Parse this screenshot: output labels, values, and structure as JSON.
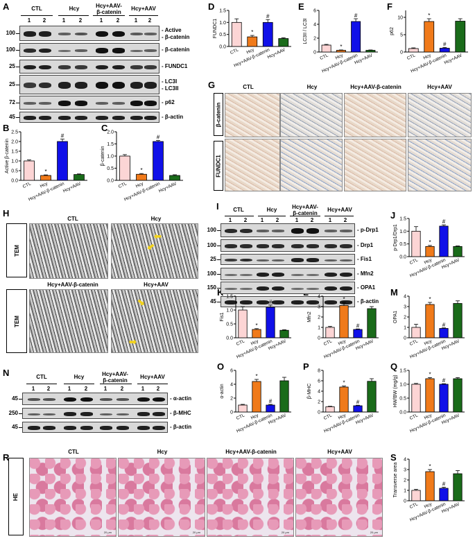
{
  "panels": {
    "A": "A",
    "B": "B",
    "C": "C",
    "D": "D",
    "E": "E",
    "F": "F",
    "G": "G",
    "H": "H",
    "I": "I",
    "J": "J",
    "K": "K",
    "L": "L",
    "M": "M",
    "N": "N",
    "O": "O",
    "P": "P",
    "Q": "Q",
    "R": "R",
    "S": "S"
  },
  "groups": [
    "CTL",
    "Hcy",
    "Hcy+AAV-β-catenin",
    "Hcy+AAV"
  ],
  "groups_wb_line1": [
    "CTL",
    "Hcy",
    "Hcy+AAV-",
    "Hcy+AAV"
  ],
  "groups_wb_line2": [
    "",
    "",
    "β-catenin",
    ""
  ],
  "lanes": [
    "1",
    "2"
  ],
  "blotA": {
    "rows": [
      {
        "mw": "100",
        "label1": "Active",
        "label2": "β-catenin"
      },
      {
        "mw": "100",
        "label1": "β-catenin",
        "label2": ""
      },
      {
        "mw": "25",
        "label1": "FUNDC1",
        "label2": ""
      },
      {
        "mw": "25",
        "label1": "LC3I",
        "label2": "LC3II"
      },
      {
        "mw": "72",
        "label1": "p62",
        "label2": ""
      },
      {
        "mw": "45",
        "label1": "β-actin",
        "label2": ""
      }
    ]
  },
  "blotI": {
    "rows": [
      {
        "mw": "100",
        "label": "p-Drp1"
      },
      {
        "mw": "100",
        "label": "Drp1"
      },
      {
        "mw": "25",
        "label": "Fis1"
      },
      {
        "mw": "100",
        "label": "Mfn2"
      },
      {
        "mw": "150",
        "label": "OPA1"
      },
      {
        "mw": "45",
        "label": "β-actin"
      }
    ]
  },
  "blotN": {
    "rows": [
      {
        "mw": "45",
        "label": "α-actin"
      },
      {
        "mw": "250",
        "label": "β-MHC"
      },
      {
        "mw": "45",
        "label": "β-actin"
      }
    ]
  },
  "ihc": {
    "titles": [
      "CTL",
      "Hcy",
      "Hcy+AAV-β-catenin",
      "Hcy+AAV"
    ],
    "rows": [
      "β-catenin",
      "FUNDC1"
    ]
  },
  "tem": {
    "row_label": "TEM",
    "titles": [
      "CTL",
      "Hcy",
      "Hcy+AAV-β-catenin",
      "Hcy+AAV"
    ]
  },
  "he": {
    "row_label": "HE",
    "titles": [
      "CTL",
      "Hcy",
      "Hcy+AAV-β-catenin",
      "Hcy+AAV"
    ],
    "scale_bar": "20 μm"
  },
  "colors": {
    "CTL": "#fcd5d5",
    "Hcy": "#f07a1a",
    "Hcy+AAV-β-catenin": "#1010e8",
    "Hcy+AAV": "#1a6b1a"
  },
  "chart_data": [
    {
      "panel": "B",
      "type": "bar",
      "categories": [
        "CTL",
        "Hcy",
        "Hcy+AAV-β-catenin",
        "Hcy+AAV"
      ],
      "values": [
        1.0,
        0.25,
        2.0,
        0.3
      ],
      "errors": [
        0.05,
        0.03,
        0.12,
        0.03
      ],
      "marks": [
        "",
        "*",
        "#",
        ""
      ],
      "ylabel": "Active β-catenin",
      "ylim": [
        0,
        2.5
      ],
      "yticks": [
        0.0,
        0.5,
        1.0,
        1.5,
        2.0,
        2.5
      ]
    },
    {
      "panel": "C",
      "type": "bar",
      "categories": [
        "CTL",
        "Hcy",
        "Hcy+AAV-β-catenin",
        "Hcy+AAV"
      ],
      "values": [
        1.0,
        0.25,
        1.6,
        0.2
      ],
      "errors": [
        0.06,
        0.03,
        0.04,
        0.03
      ],
      "marks": [
        "",
        "*",
        "#",
        ""
      ],
      "ylabel": "β-catenin",
      "ylim": [
        0,
        2.0
      ],
      "yticks": [
        0.0,
        0.5,
        1.0,
        1.5,
        2.0
      ]
    },
    {
      "panel": "D",
      "type": "bar",
      "categories": [
        "CTL",
        "Hcy",
        "Hcy+AAV-β-catenin",
        "Hcy+AAV"
      ],
      "values": [
        1.0,
        0.4,
        1.0,
        0.33
      ],
      "errors": [
        0.15,
        0.06,
        0.12,
        0.03
      ],
      "marks": [
        "",
        "*",
        "#",
        ""
      ],
      "ylabel": "FUNDC1",
      "ylim": [
        0,
        1.5
      ],
      "yticks": [
        0.0,
        0.5,
        1.0,
        1.5
      ]
    },
    {
      "panel": "E",
      "type": "bar",
      "categories": [
        "CTL",
        "Hcy",
        "Hcy+AAV-β-catenin",
        "Hcy+AAV"
      ],
      "values": [
        1.0,
        0.25,
        4.4,
        0.25
      ],
      "errors": [
        0.1,
        0.05,
        0.4,
        0.05
      ],
      "marks": [
        "",
        "*",
        "#",
        ""
      ],
      "ylabel": "LC3II / LC3I",
      "ylim": [
        0,
        6
      ],
      "yticks": [
        0,
        2,
        4,
        6
      ]
    },
    {
      "panel": "F",
      "type": "bar",
      "categories": [
        "CTL",
        "Hcy",
        "Hcy+AAV-β-catenin",
        "Hcy+AAV"
      ],
      "values": [
        1.0,
        8.8,
        1.1,
        8.9
      ],
      "errors": [
        0.2,
        0.8,
        0.2,
        0.7
      ],
      "marks": [
        "",
        "*",
        "#",
        ""
      ],
      "ylabel": "p62",
      "ylim": [
        0,
        12
      ],
      "yticks": [
        0,
        5,
        10
      ]
    },
    {
      "panel": "J",
      "type": "bar",
      "categories": [
        "CTL",
        "Hcy",
        "Hcy+AAV-β-catenin",
        "Hcy+AAV"
      ],
      "values": [
        1.0,
        0.4,
        1.2,
        0.4
      ],
      "errors": [
        0.18,
        0.04,
        0.05,
        0.02
      ],
      "marks": [
        "",
        "*",
        "#",
        ""
      ],
      "ylabel": "p-Drp1/Drp1",
      "ylim": [
        0,
        1.5
      ],
      "yticks": [
        0.0,
        0.5,
        1.0,
        1.5
      ]
    },
    {
      "panel": "K",
      "type": "bar",
      "categories": [
        "CTL",
        "Hcy",
        "Hcy+AAV-β-catenin",
        "Hcy+AAV"
      ],
      "values": [
        1.0,
        0.3,
        1.1,
        0.27
      ],
      "errors": [
        0.12,
        0.03,
        0.08,
        0.02
      ],
      "marks": [
        "",
        "*",
        "#",
        ""
      ],
      "ylabel": "Fis1",
      "ylim": [
        0,
        1.5
      ],
      "yticks": [
        0.0,
        0.5,
        1.0,
        1.5
      ]
    },
    {
      "panel": "L",
      "type": "bar",
      "categories": [
        "CTL",
        "Hcy",
        "Hcy+AAV-β-catenin",
        "Hcy+AAV"
      ],
      "values": [
        1.0,
        3.1,
        0.8,
        2.8
      ],
      "errors": [
        0.1,
        0.3,
        0.05,
        0.2
      ],
      "marks": [
        "",
        "*",
        "#",
        ""
      ],
      "ylabel": "Mfn2",
      "ylim": [
        0,
        4
      ],
      "yticks": [
        0,
        1,
        2,
        3,
        4
      ]
    },
    {
      "panel": "M",
      "type": "bar",
      "categories": [
        "CTL",
        "Hcy",
        "Hcy+AAV-β-catenin",
        "Hcy+AAV"
      ],
      "values": [
        1.0,
        3.2,
        0.9,
        3.3
      ],
      "errors": [
        0.3,
        0.2,
        0.05,
        0.25
      ],
      "marks": [
        "",
        "*",
        "#",
        ""
      ],
      "ylabel": "OPA1",
      "ylim": [
        0,
        4
      ],
      "yticks": [
        0,
        1,
        2,
        3,
        4
      ]
    },
    {
      "panel": "O",
      "type": "bar",
      "categories": [
        "CTL",
        "Hcy",
        "Hcy+AAV-β-catenin",
        "Hcy+AAV"
      ],
      "values": [
        1.0,
        4.4,
        1.0,
        4.5
      ],
      "errors": [
        0.1,
        0.3,
        0.1,
        0.5
      ],
      "marks": [
        "",
        "*",
        "#",
        ""
      ],
      "ylabel": "α-actin",
      "ylim": [
        0,
        6
      ],
      "yticks": [
        0,
        2,
        4,
        6
      ]
    },
    {
      "panel": "P",
      "type": "bar",
      "categories": [
        "CTL",
        "Hcy",
        "Hcy+AAV-β-catenin",
        "Hcy+AAV"
      ],
      "values": [
        1.0,
        4.8,
        1.2,
        5.9
      ],
      "errors": [
        0.1,
        0.2,
        0.1,
        0.5
      ],
      "marks": [
        "",
        "*",
        "#",
        ""
      ],
      "ylabel": "β-MHC",
      "ylim": [
        0,
        8
      ],
      "yticks": [
        0,
        2,
        4,
        6,
        8
      ]
    },
    {
      "panel": "Q",
      "type": "bar",
      "categories": [
        "CTL",
        "Hcy",
        "Hcy+AAV-β-catenin",
        "Hcy+AAV"
      ],
      "values": [
        1.0,
        1.2,
        1.0,
        1.2
      ],
      "errors": [
        0.03,
        0.04,
        0.02,
        0.04
      ],
      "marks": [
        "",
        "*",
        "#",
        ""
      ],
      "ylabel": "HW/BW (mg/g)",
      "ylim": [
        0,
        1.5
      ],
      "yticks": [
        0.0,
        0.5,
        1.0,
        1.5
      ]
    },
    {
      "panel": "S",
      "type": "bar",
      "categories": [
        "CTL",
        "Hcy",
        "Hcy+AAV-β-catenin",
        "Hcy+AAV"
      ],
      "values": [
        1.0,
        2.8,
        1.2,
        2.6
      ],
      "errors": [
        0.1,
        0.2,
        0.1,
        0.3
      ],
      "marks": [
        "",
        "*",
        "#",
        ""
      ],
      "ylabel": "Transverse area",
      "ylim": [
        0,
        4
      ],
      "yticks": [
        0,
        1,
        2,
        3,
        4
      ]
    }
  ]
}
